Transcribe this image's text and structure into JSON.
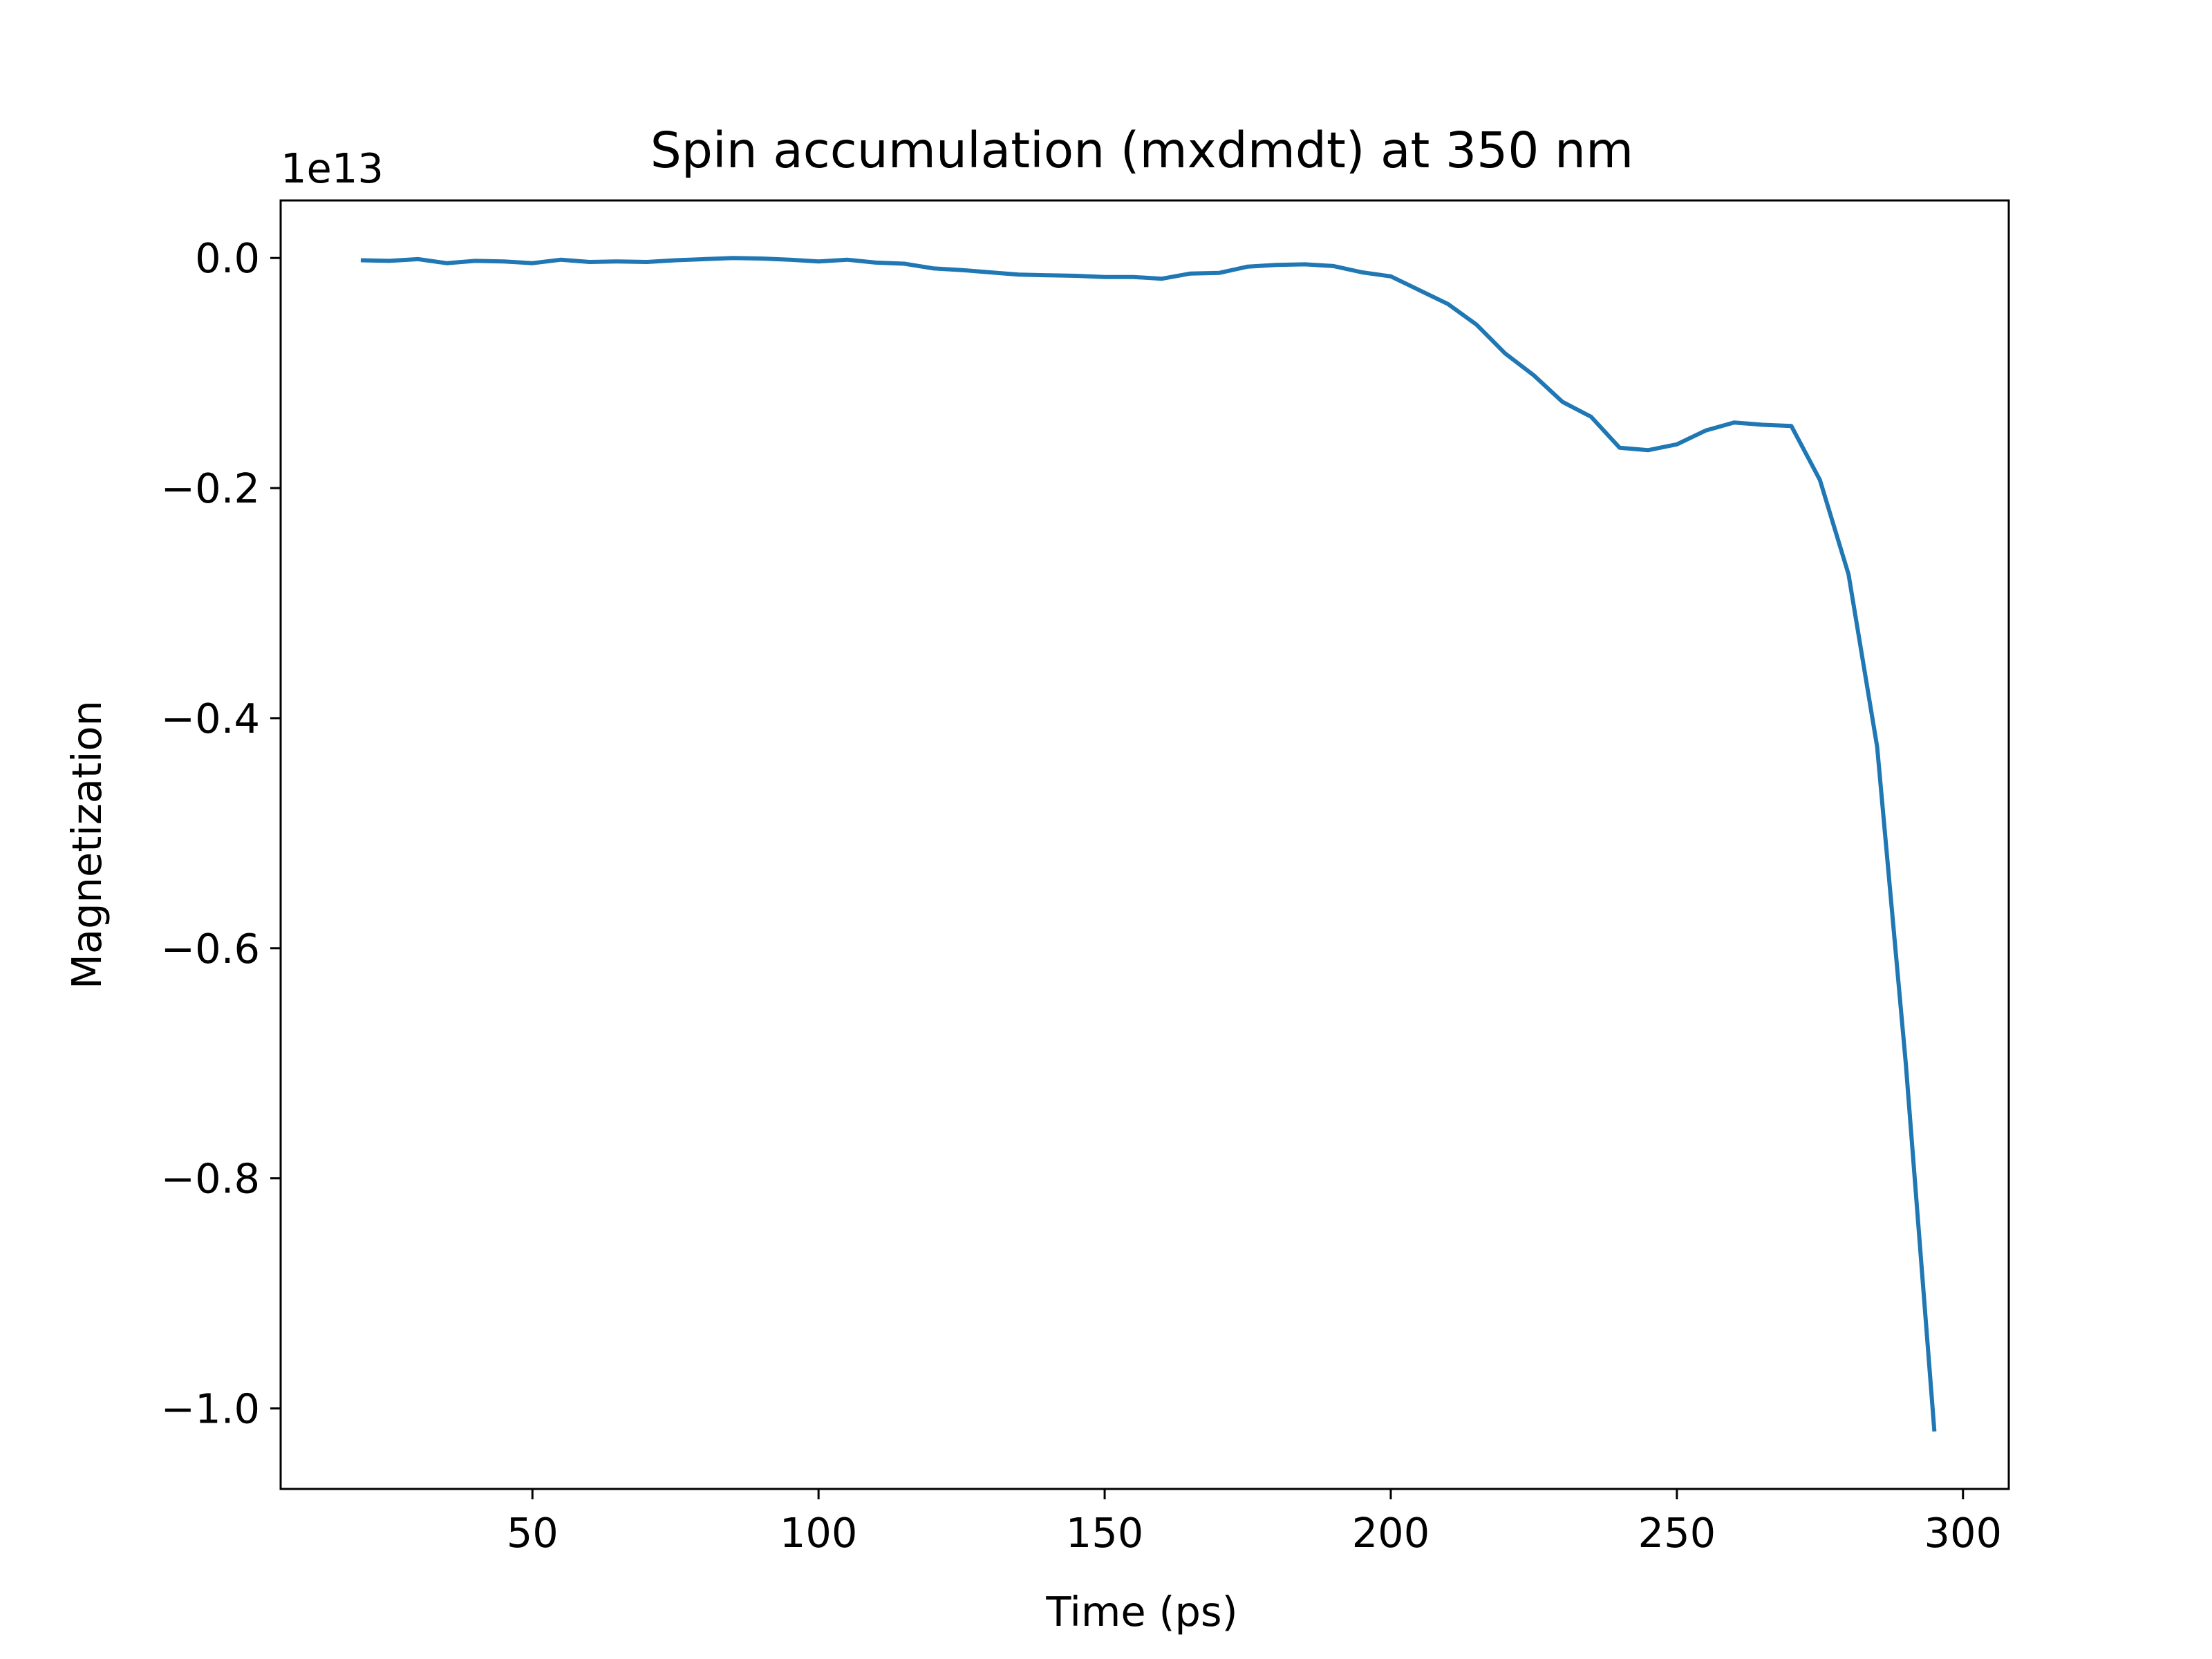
{
  "chart_data": {
    "type": "line",
    "title": "Spin accumulation (mxdmdt) at 350 nm",
    "xlabel": "Time (ps)",
    "ylabel": "Magnetization",
    "offset_label": "1e13",
    "y_scale_factor": 10000000000000,
    "xlim": [
      6,
      308
    ],
    "ylim": [
      -1.07,
      0.05
    ],
    "x_ticks": [
      {
        "value": 50,
        "label": "50"
      },
      {
        "value": 100,
        "label": "100"
      },
      {
        "value": 150,
        "label": "150"
      },
      {
        "value": 200,
        "label": "200"
      },
      {
        "value": 250,
        "label": "250"
      },
      {
        "value": 300,
        "label": "300"
      }
    ],
    "y_ticks": [
      {
        "value": 0.0,
        "label": "0.0"
      },
      {
        "value": -0.2,
        "label": "−0.2"
      },
      {
        "value": -0.4,
        "label": "−0.4"
      },
      {
        "value": -0.6,
        "label": "−0.6"
      },
      {
        "value": -0.8,
        "label": "−0.8"
      },
      {
        "value": -1.0,
        "label": "−1.0"
      }
    ],
    "grid": false,
    "legend": "none",
    "series": [
      {
        "color": "#1f77b4",
        "x": [
          20,
          25,
          30,
          35,
          40,
          45,
          50,
          55,
          60,
          65,
          70,
          75,
          80,
          85,
          90,
          95,
          100,
          105,
          110,
          115,
          120,
          125,
          130,
          135,
          140,
          145,
          150,
          155,
          160,
          165,
          170,
          175,
          180,
          185,
          190,
          195,
          200,
          205,
          210,
          215,
          220,
          225,
          230,
          235,
          240,
          245,
          250,
          255,
          260,
          265,
          270,
          275,
          280,
          285,
          290,
          295
        ],
        "y": [
          -0.002,
          -0.0025,
          -0.001,
          -0.0045,
          -0.0025,
          -0.003,
          -0.0045,
          -0.0015,
          -0.0035,
          -0.003,
          -0.0035,
          -0.002,
          -0.001,
          0.0,
          -0.0005,
          -0.0015,
          -0.003,
          -0.0015,
          -0.004,
          -0.005,
          -0.009,
          -0.0105,
          -0.0125,
          -0.0145,
          -0.015,
          -0.0155,
          -0.0165,
          -0.0165,
          -0.018,
          -0.0135,
          -0.013,
          -0.0075,
          -0.006,
          -0.0055,
          -0.007,
          -0.0125,
          -0.016,
          -0.028,
          -0.04,
          -0.058,
          -0.083,
          -0.102,
          -0.125,
          -0.138,
          -0.165,
          -0.167,
          -0.162,
          -0.15,
          -0.143,
          -0.145,
          -0.146,
          -0.193,
          -0.275,
          -0.425,
          -0.7,
          -1.02
        ]
      }
    ]
  }
}
